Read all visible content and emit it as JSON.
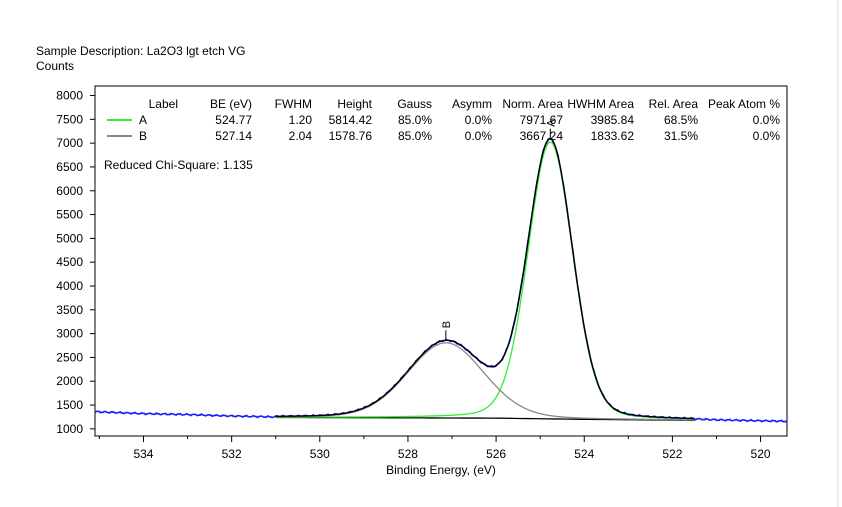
{
  "header": {
    "sample_description": "Sample Description:  La2O3 lgt etch VG",
    "y_units": "Counts"
  },
  "chart_data": {
    "type": "line",
    "title": "",
    "xlabel": "Binding Energy, (eV)",
    "ylabel": "Counts",
    "xlim": [
      535.1,
      519.4
    ],
    "ylim": [
      850,
      8200
    ],
    "x_reversed": true,
    "x_ticks": [
      534,
      532,
      530,
      528,
      526,
      524,
      522,
      520
    ],
    "y_ticks": [
      1000,
      1500,
      2000,
      2500,
      3000,
      3500,
      4000,
      4500,
      5000,
      5500,
      6000,
      6500,
      7000,
      7500,
      8000
    ],
    "grid": false,
    "reduced_chi_square": "Reduced Chi-Square: 1.135",
    "peak_table": {
      "headers": [
        "Label",
        "BE (eV)",
        "FWHM",
        "Height",
        "Gauss",
        "Asymm",
        "Norm. Area",
        "HWHM Area",
        "Rel. Area",
        "Peak Atom %"
      ],
      "rows": [
        [
          "A",
          "524.77",
          "1.20",
          "5814.42",
          "85.0%",
          "0.0%",
          "7971.67",
          "3985.84",
          "68.5%",
          "0.0%"
        ],
        [
          "B",
          "527.14",
          "2.04",
          "1578.76",
          "85.0%",
          "0.0%",
          "3667.24",
          "1833.62",
          "31.5%",
          "0.0%"
        ]
      ]
    },
    "peaks": [
      {
        "label": "A",
        "center": 524.77,
        "fwhm": 1.2,
        "height": 5814.42,
        "gauss": 0.85,
        "color": "#33ee33"
      },
      {
        "label": "B",
        "center": 527.14,
        "fwhm": 2.04,
        "height": 1578.76,
        "gauss": 0.85,
        "color": "#888888"
      }
    ],
    "background": {
      "x": [
        531.0,
        526.0,
        524.0,
        521.5
      ],
      "y": [
        1240,
        1225,
        1200,
        1180
      ],
      "color": "#000000"
    },
    "fit_range": [
      531.0,
      521.5
    ],
    "raw_data": {
      "color": "#1a1aff",
      "x": [
        535.1,
        534.0,
        533.0,
        532.0,
        531.0,
        530.0,
        529.0,
        528.5,
        528.0,
        527.5,
        527.0,
        526.5,
        526.2,
        526.0,
        525.7,
        525.4,
        525.1,
        524.9,
        524.77,
        524.6,
        524.3,
        524.0,
        523.7,
        523.4,
        523.1,
        522.8,
        522.5,
        522.0,
        521.5,
        521.0,
        520.0,
        519.4
      ],
      "y": [
        1360,
        1320,
        1300,
        1270,
        1250,
        1300,
        1440,
        1690,
        2070,
        2500,
        2810,
        2750,
        2400,
        2310,
        2650,
        4300,
        6200,
        6900,
        7050,
        6700,
        5300,
        3600,
        2200,
        1580,
        1370,
        1290,
        1260,
        1230,
        1210,
        1190,
        1170,
        1160
      ]
    },
    "series": [
      {
        "name": "A",
        "color": "#33ee33"
      },
      {
        "name": "B",
        "color": "#888888"
      }
    ]
  }
}
